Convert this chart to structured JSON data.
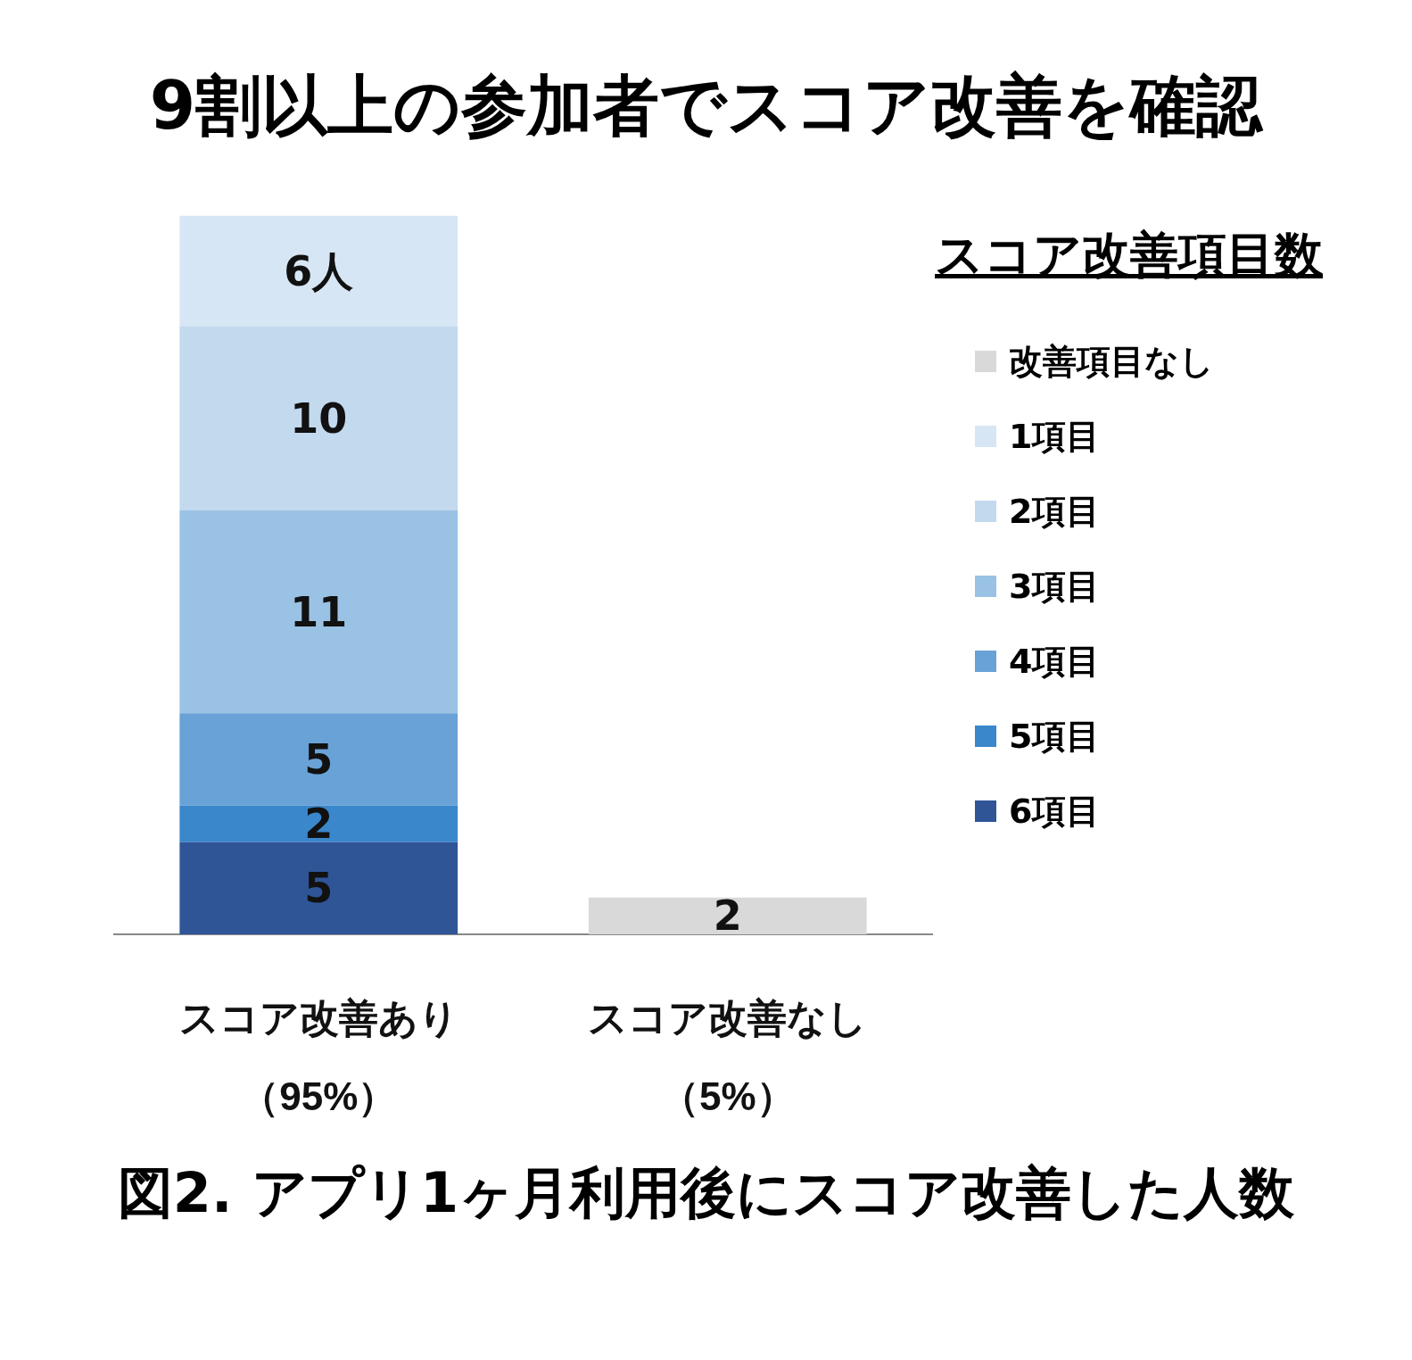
{
  "chart_data": {
    "type": "bar",
    "title": "9割以上の参加者でスコア改善を確認",
    "legend_title": "スコア改善項目数",
    "legend": "right",
    "stacked": true,
    "categories": [
      "スコア改善あり（95%）",
      "スコア改善なし（5%）"
    ],
    "series": [
      {
        "name": "6項目",
        "color": "#2f5597",
        "values": [
          5,
          null
        ],
        "value_labels": [
          "5",
          null
        ]
      },
      {
        "name": "5項目",
        "color": "#3a87cb",
        "values": [
          2,
          null
        ],
        "value_labels": [
          "2",
          null
        ]
      },
      {
        "name": "4項目",
        "color": "#69a2d6",
        "values": [
          5,
          null
        ],
        "value_labels": [
          "5",
          null
        ]
      },
      {
        "name": "3項目",
        "color": "#9ac2e4",
        "values": [
          11,
          null
        ],
        "value_labels": [
          "11",
          null
        ]
      },
      {
        "name": "2項目",
        "color": "#c2d9ee",
        "values": [
          10,
          null
        ],
        "value_labels": [
          "10",
          null
        ]
      },
      {
        "name": "1項目",
        "color": "#d7e6f4",
        "values": [
          6,
          null
        ],
        "value_labels": [
          "6人",
          null
        ]
      },
      {
        "name": "改善項目なし",
        "color": "#d9d9d9",
        "values": [
          null,
          2
        ],
        "value_labels": [
          null,
          "2"
        ]
      }
    ],
    "annotations": [
      "図2. アプリ1ヶ月利用後にスコア改善した人数"
    ]
  }
}
